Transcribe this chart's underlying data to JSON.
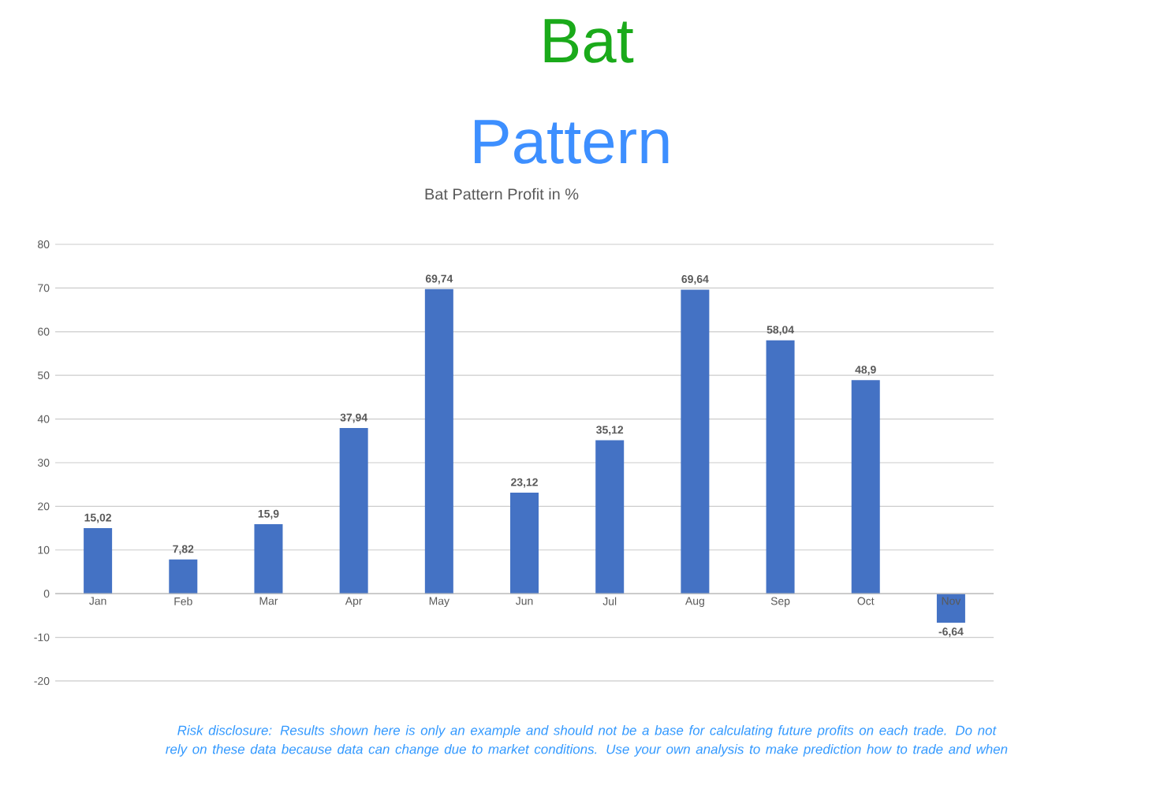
{
  "chart_data": {
    "type": "bar",
    "title": "Bat Pattern Profit in %",
    "categories": [
      "Jan",
      "Feb",
      "Mar",
      "Apr",
      "May",
      "Jun",
      "Jul",
      "Aug",
      "Sep",
      "Oct",
      "Nov"
    ],
    "values": [
      15.02,
      7.82,
      15.9,
      37.94,
      69.74,
      23.12,
      35.12,
      69.64,
      58.04,
      48.9,
      -6.64
    ],
    "value_labels": [
      "15,02",
      "7,82",
      "15,9",
      "37,94",
      "69,74",
      "23,12",
      "35,12",
      "69,64",
      "58,04",
      "48,9",
      "-6,64"
    ],
    "color": "#4472c4",
    "ylim": [
      -20,
      80
    ],
    "yticks": [
      -20,
      -10,
      0,
      10,
      20,
      30,
      40,
      50,
      60,
      70,
      80
    ],
    "grid": "y",
    "annotations": [
      "Bat",
      "Pattern",
      "Risk disclosure: Results shown here is only an example and should not be a base for calculating future profits on each trade. Do not rely on these data because data can change due to market conditions. Use your own analysis to make prediction how to trade and when"
    ]
  }
}
